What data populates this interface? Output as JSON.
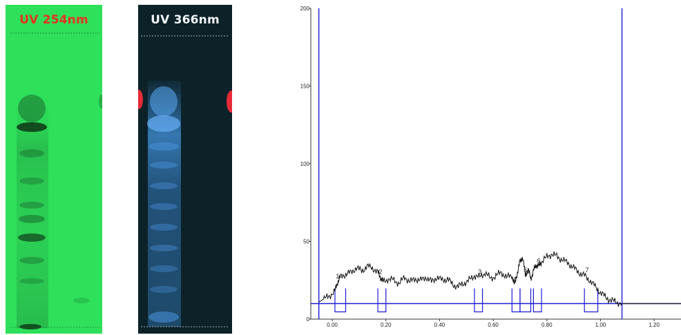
{
  "plates": {
    "uv254": {
      "label": "UV 254nm",
      "background": "#2ee05a",
      "band_color": "#0f3d1a"
    },
    "uv366": {
      "label": "UV 366nm",
      "background": "#0c2228",
      "band_color": "#3f8fe0",
      "edge_color": "#ff2a3a"
    }
  },
  "chart_data": {
    "type": "line",
    "title": "",
    "xlabel": "",
    "ylabel": "",
    "xlim": [
      -0.08,
      1.3
    ],
    "ylim": [
      0,
      200
    ],
    "x_ticks": [
      {
        "value": 0.0,
        "label": "0.00"
      },
      {
        "value": 0.2,
        "label": "0.20"
      },
      {
        "value": 0.4,
        "label": "0.40"
      },
      {
        "value": 0.6,
        "label": "0.60"
      },
      {
        "value": 0.8,
        "label": "0.80"
      },
      {
        "value": 1.0,
        "label": "1.00"
      },
      {
        "value": 1.2,
        "label": "1.20"
      }
    ],
    "y_ticks": [
      {
        "value": 0,
        "label": "0"
      },
      {
        "value": 50,
        "label": "50"
      },
      {
        "value": 100,
        "label": "100"
      },
      {
        "value": 150,
        "label": "150"
      },
      {
        "value": 200,
        "label": "200"
      }
    ],
    "start_marker_x": -0.05,
    "end_marker_x": 1.08,
    "baseline_y": 10,
    "trace_color": "#111111",
    "marker_color": "#1a1ad6",
    "series": [
      {
        "x": [
          -0.05,
          -0.03,
          -0.01,
          0.01,
          0.02,
          0.03,
          0.05,
          0.07,
          0.09,
          0.11,
          0.13,
          0.15,
          0.17,
          0.18,
          0.19,
          0.21,
          0.23,
          0.25,
          0.27,
          0.29,
          0.31,
          0.33,
          0.35,
          0.37,
          0.39,
          0.41,
          0.43,
          0.45,
          0.47,
          0.49,
          0.51,
          0.53,
          0.55,
          0.57,
          0.59,
          0.61,
          0.63,
          0.65,
          0.67,
          0.68,
          0.69,
          0.7,
          0.71,
          0.72,
          0.73,
          0.74,
          0.75,
          0.76,
          0.77,
          0.78,
          0.8,
          0.82,
          0.84,
          0.86,
          0.88,
          0.9,
          0.92,
          0.94,
          0.96,
          0.98,
          1.0,
          1.02,
          1.04,
          1.06,
          1.08
        ],
        "y": [
          11,
          13,
          15,
          18,
          24,
          27,
          29,
          30,
          33,
          31,
          34,
          33,
          30,
          27,
          24,
          26,
          25,
          23,
          27,
          24,
          26,
          25,
          27,
          24,
          27,
          25,
          26,
          22,
          21,
          23,
          25,
          28,
          27,
          30,
          26,
          28,
          30,
          27,
          28,
          22,
          30,
          37,
          40,
          28,
          32,
          26,
          31,
          35,
          34,
          37,
          40,
          42,
          40,
          38,
          36,
          33,
          30,
          28,
          25,
          21,
          17,
          14,
          12,
          11,
          10
        ]
      }
    ],
    "peaks": [
      {
        "label": "1",
        "x": 0.02,
        "x_start": 0.01,
        "x_end": 0.05
      },
      {
        "label": "2",
        "x": 0.18,
        "x_start": 0.17,
        "x_end": 0.2
      },
      {
        "label": "3",
        "x": 0.55,
        "x_start": 0.53,
        "x_end": 0.56
      },
      {
        "label": "4",
        "x": 0.68,
        "x_start": 0.67,
        "x_end": 0.7
      },
      {
        "label": "5",
        "x": 0.72,
        "x_start": 0.7,
        "x_end": 0.74
      },
      {
        "label": "6",
        "x": 0.77,
        "x_start": 0.75,
        "x_end": 0.78
      },
      {
        "label": "7",
        "x": 0.95,
        "x_start": 0.94,
        "x_end": 0.99
      }
    ]
  }
}
